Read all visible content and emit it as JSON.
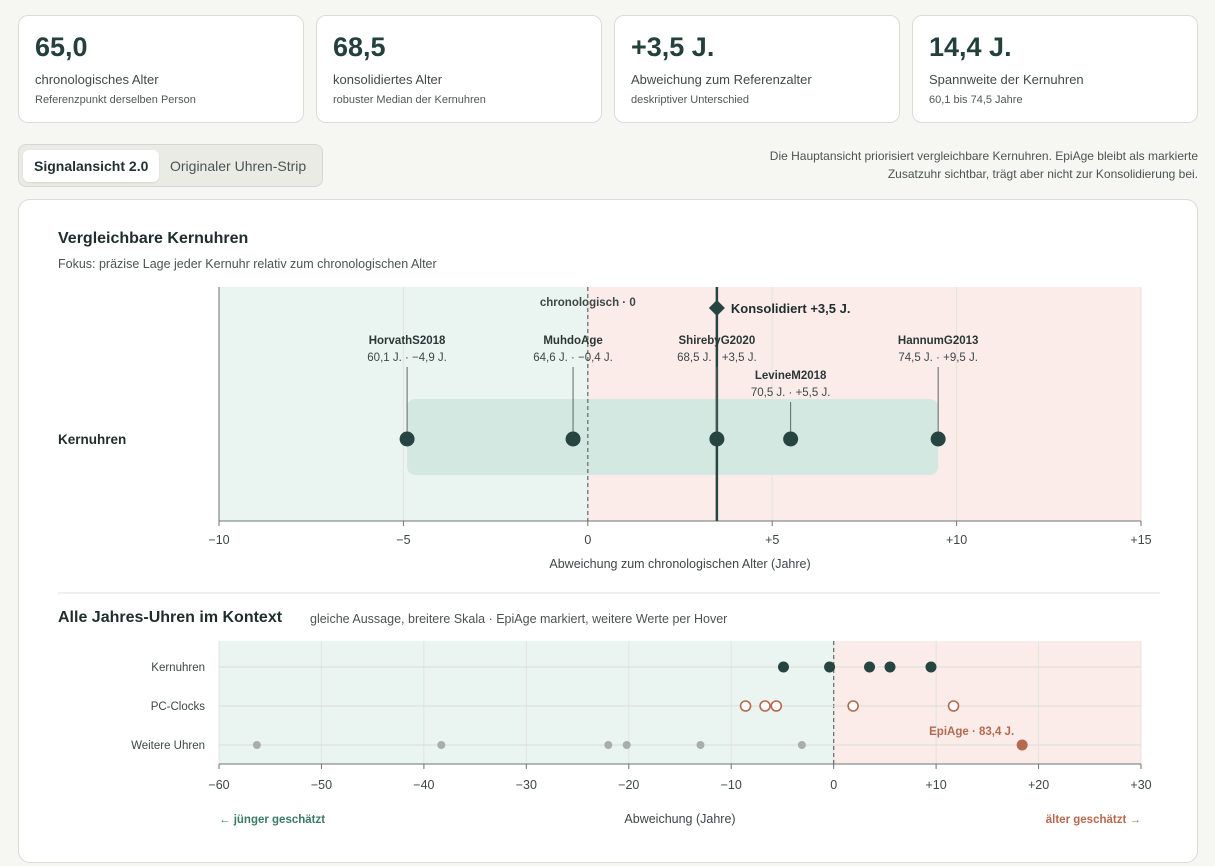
{
  "kpis": [
    {
      "value": "65,0",
      "label": "chronologisches Alter",
      "sub": "Referenzpunkt derselben Person"
    },
    {
      "value": "68,5",
      "label": "konsolidiertes Alter",
      "sub": "robuster Median der Kernuhren"
    },
    {
      "value": "+3,5 J.",
      "label": "Abweichung zum Referenzalter",
      "sub": "deskriptiver Unterschied"
    },
    {
      "value": "14,4 J.",
      "label": "Spannweite der Kernuhren",
      "sub": "60,1 bis 74,5 Jahre"
    }
  ],
  "tabs": {
    "active": "Signalansicht 2.0",
    "other": "Originaler Uhren-Strip"
  },
  "note": "Die Hauptansicht priorisiert vergleichbare Kernuhren. EpiAge bleibt als markierte Zusatzuhr sichtbar, trägt aber nicht zur Konsolidierung bei.",
  "section1": {
    "title": "Vergleichbare Kernuhren",
    "subtitle": "Fokus: präzise Lage jeder Kernuhr relativ zum chronologischen Alter"
  },
  "section2": {
    "title": "Alle Jahres-Uhren im Kontext",
    "subtitle": "gleiche Aussage, breitere Skala · EpiAge markiert, weitere Werte per Hover"
  },
  "colors": {
    "dark": "#264440",
    "young_bg": "#eaf4f0",
    "old_bg": "#fbecea",
    "range_band": "#d4e8e2",
    "pc": "#b5694f",
    "other": "#a9aeac"
  },
  "chart_data": [
    {
      "type": "scatter",
      "title": "Vergleichbare Kernuhren",
      "xlabel": "Abweichung zum chronologischen Alter (Jahre)",
      "xlim": [
        -10,
        15
      ],
      "xticks": [
        -10,
        -5,
        0,
        5,
        10,
        15
      ],
      "xtick_labels": [
        "−10",
        "−5",
        "0",
        "+5",
        "+10",
        "+15"
      ],
      "row_label": "Kernuhren",
      "chronological_label": "chronologisch · 0",
      "consolidated": {
        "x": 3.5,
        "label": "Konsolidiert +3,5 J."
      },
      "range": [
        -4.9,
        9.5
      ],
      "points": [
        {
          "name": "HorvathS2018",
          "x": -4.9,
          "label": "60,1 J. · −4,9 J.",
          "tier": 0
        },
        {
          "name": "MuhdoAge",
          "x": -0.4,
          "label": "64,6 J. · −0,4 J.",
          "tier": 0
        },
        {
          "name": "ShirebyG2020",
          "x": 3.5,
          "label": "68,5 J. · +3,5 J.",
          "tier": 0
        },
        {
          "name": "LevineM2018",
          "x": 5.5,
          "label": "70,5 J. · +5,5 J.",
          "tier": 1
        },
        {
          "name": "HannumG2013",
          "x": 9.5,
          "label": "74,5 J. · +9,5 J.",
          "tier": 0
        }
      ]
    },
    {
      "type": "scatter",
      "title": "Alle Jahres-Uhren im Kontext",
      "xlabel": "Abweichung (Jahre)",
      "xlim": [
        -60,
        30
      ],
      "xticks": [
        -60,
        -50,
        -40,
        -30,
        -20,
        -10,
        0,
        10,
        20,
        30
      ],
      "xtick_labels": [
        "−60",
        "−50",
        "−40",
        "−30",
        "−20",
        "−10",
        "0",
        "+10",
        "+20",
        "+30"
      ],
      "left_hint": "← jünger geschätzt",
      "right_hint": "älter geschätzt →",
      "series": [
        {
          "name": "Kernuhren",
          "style": "filled-dark",
          "values": [
            -4.9,
            -0.4,
            3.5,
            5.5,
            9.5
          ]
        },
        {
          "name": "PC-Clocks",
          "style": "hollow",
          "values": [
            -8.6,
            -6.7,
            -5.6,
            1.9,
            11.7
          ]
        },
        {
          "name": "Weitere Uhren",
          "style": "small-grey",
          "values": [
            -56.3,
            -38.3,
            -22.0,
            -20.2,
            -13.0,
            -3.1
          ]
        }
      ],
      "highlight": {
        "series": "Weitere Uhren",
        "x": 18.4,
        "label": "EpiAge · 83,4 J."
      }
    }
  ]
}
